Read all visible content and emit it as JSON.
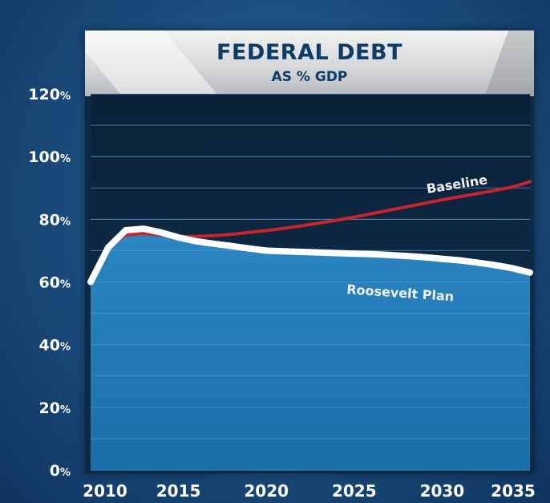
{
  "chart_data": {
    "type": "line",
    "title": "FEDERAL DEBT",
    "subtitle": "AS % GDP",
    "xlabel": "",
    "ylabel": "",
    "x_ticks": [
      "2010",
      "2015",
      "2020",
      "2025",
      "2030",
      "2035"
    ],
    "y_ticks": [
      "0%",
      "20%",
      "40%",
      "60%",
      "80%",
      "100%",
      "120%"
    ],
    "xlim": [
      2010,
      2035
    ],
    "ylim": [
      0,
      120
    ],
    "grid": true,
    "series": [
      {
        "name": "Baseline",
        "color": "#c8242b",
        "x": [
          2010,
          2011,
          2012,
          2013,
          2014,
          2015,
          2016,
          2017,
          2018,
          2019,
          2020,
          2021,
          2022,
          2023,
          2024,
          2025,
          2026,
          2027,
          2028,
          2029,
          2030,
          2031,
          2032,
          2033,
          2034,
          2035
        ],
        "values": [
          61,
          71,
          75,
          75.5,
          75,
          74.5,
          74.5,
          74.8,
          75.2,
          75.8,
          76.4,
          77.1,
          77.9,
          78.8,
          79.7,
          80.7,
          81.8,
          82.9,
          84,
          85.1,
          86.2,
          87.2,
          88.2,
          89.2,
          90.3,
          92
        ]
      },
      {
        "name": "Roosevelt Plan",
        "color": "#ffffff",
        "x": [
          2010,
          2011,
          2012,
          2013,
          2014,
          2015,
          2016,
          2017,
          2018,
          2019,
          2020,
          2021,
          2022,
          2023,
          2024,
          2025,
          2026,
          2027,
          2028,
          2029,
          2030,
          2031,
          2032,
          2033,
          2034,
          2035
        ],
        "values": [
          60,
          71,
          76.5,
          77,
          75.8,
          74.2,
          73,
          72.2,
          71.5,
          70.7,
          70,
          69.8,
          69.6,
          69.4,
          69.2,
          69,
          68.9,
          68.6,
          68.3,
          67.9,
          67.4,
          66.9,
          66.2,
          65.4,
          64.4,
          63
        ]
      }
    ]
  }
}
